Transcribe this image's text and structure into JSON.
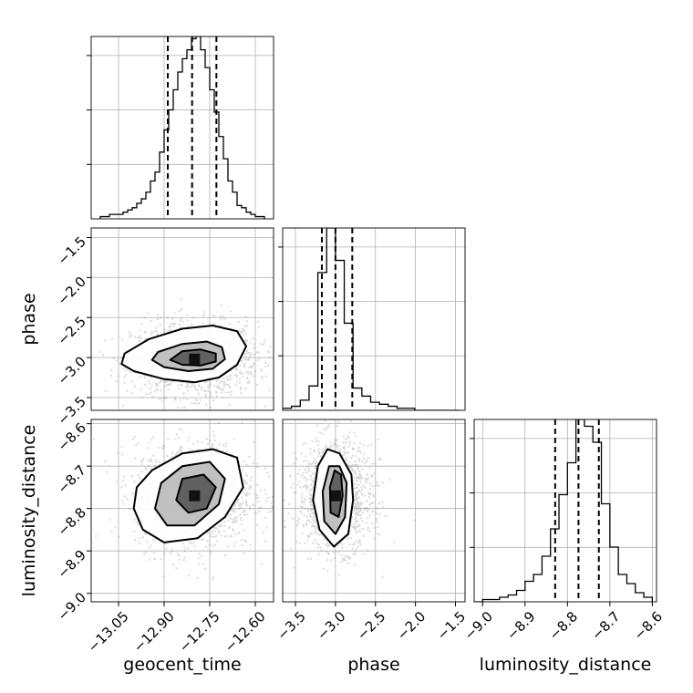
{
  "chart_data": {
    "type": "corner",
    "grid": true,
    "parameters": [
      {
        "name": "geocent_time",
        "range": [
          -13.14,
          -12.54
        ],
        "ticks": [
          -13.05,
          -12.9,
          -12.75,
          -12.6
        ],
        "tick_labels": [
          "−13.05",
          "−12.90",
          "−12.75",
          "−12.60"
        ],
        "quantiles": [
          -12.888,
          -12.808,
          -12.728
        ],
        "hist_bins": [
          -13.11,
          -13.095,
          -13.08,
          -13.065,
          -13.05,
          -13.035,
          -13.02,
          -13.005,
          -12.99,
          -12.975,
          -12.96,
          -12.945,
          -12.93,
          -12.915,
          -12.9,
          -12.885,
          -12.87,
          -12.855,
          -12.84,
          -12.825,
          -12.81,
          -12.795,
          -12.78,
          -12.765,
          -12.75,
          -12.735,
          -12.72,
          -12.705,
          -12.69,
          -12.675,
          -12.66,
          -12.645,
          -12.63,
          -12.615,
          -12.6,
          -12.585,
          -12.57
        ],
        "hist_counts": [
          1,
          1,
          2,
          2,
          2,
          3,
          4,
          5,
          7,
          9,
          12,
          17,
          21,
          30,
          40,
          49,
          58,
          66,
          72,
          76,
          81,
          82,
          76,
          68,
          58,
          48,
          37,
          27,
          17,
          12,
          6,
          5,
          3,
          2,
          1,
          1
        ]
      },
      {
        "name": "phase",
        "range": [
          -3.66,
          -1.38
        ],
        "ticks": [
          -3.5,
          -3.0,
          -2.5,
          -2.0,
          -1.5
        ],
        "tick_labels": [
          "−3.5",
          "−3.0",
          "−2.5",
          "−2.0",
          "−1.5"
        ],
        "y_ticks": [
          -3.5,
          -3.0,
          -2.5,
          -2.0,
          -1.5
        ],
        "quantiles": [
          -3.17,
          -3.0,
          -2.79
        ],
        "hist_bins": [
          -3.66,
          -3.55,
          -3.44,
          -3.33,
          -3.22,
          -3.11,
          -3.0,
          -2.89,
          -2.78,
          -2.67,
          -2.56,
          -2.45,
          -2.34,
          -2.23,
          -2.12,
          -2.01,
          -1.9,
          -1.79,
          -1.68,
          -1.57,
          -1.46
        ],
        "hist_counts": [
          1,
          2,
          5,
          12,
          68,
          90,
          74,
          43,
          11,
          7,
          4,
          3,
          2,
          1,
          1,
          0,
          0,
          0,
          0,
          0
        ]
      },
      {
        "name": "luminosity_distance",
        "range": [
          -9.02,
          -8.59
        ],
        "ticks": [
          -9.0,
          -8.9,
          -8.8,
          -8.7,
          -8.6
        ],
        "tick_labels": [
          "−9.0",
          "−8.9",
          "−8.8",
          "−8.7",
          "−8.6"
        ],
        "quantiles": [
          -8.829,
          -8.774,
          -8.726
        ],
        "hist_bins": [
          -9.02,
          -9.0,
          -8.98,
          -8.96,
          -8.94,
          -8.92,
          -8.9,
          -8.88,
          -8.86,
          -8.84,
          -8.82,
          -8.8,
          -8.78,
          -8.76,
          -8.74,
          -8.72,
          -8.7,
          -8.68,
          -8.66,
          -8.64,
          -8.62,
          -8.6
        ],
        "hist_counts": [
          0,
          1,
          1,
          2,
          3,
          5,
          9,
          12,
          20,
          32,
          47,
          61,
          80,
          77,
          70,
          43,
          24,
          12,
          8,
          4,
          2
        ]
      }
    ],
    "pairs": [
      {
        "x": "geocent_time",
        "y": "phase",
        "center": [
          -12.8,
          -3.02
        ],
        "spread": [
          0.09,
          0.2
        ],
        "contours": [
          [
            [
              -13.04,
              -3.08
            ],
            [
              -13.0,
              -3.17
            ],
            [
              -12.9,
              -3.27
            ],
            [
              -12.8,
              -3.31
            ],
            [
              -12.72,
              -3.25
            ],
            [
              -12.66,
              -3.09
            ],
            [
              -12.63,
              -2.86
            ],
            [
              -12.66,
              -2.67
            ],
            [
              -12.74,
              -2.6
            ],
            [
              -12.84,
              -2.64
            ],
            [
              -12.95,
              -2.77
            ],
            [
              -13.03,
              -2.95
            ]
          ],
          [
            [
              -12.94,
              -3.03
            ],
            [
              -12.9,
              -3.12
            ],
            [
              -12.82,
              -3.17
            ],
            [
              -12.74,
              -3.14
            ],
            [
              -12.7,
              -3.02
            ],
            [
              -12.71,
              -2.87
            ],
            [
              -12.76,
              -2.8
            ],
            [
              -12.84,
              -2.83
            ],
            [
              -12.92,
              -2.93
            ]
          ],
          [
            [
              -12.88,
              -3.03
            ],
            [
              -12.84,
              -3.09
            ],
            [
              -12.78,
              -3.1
            ],
            [
              -12.73,
              -3.05
            ],
            [
              -12.73,
              -2.95
            ],
            [
              -12.78,
              -2.9
            ],
            [
              -12.84,
              -2.92
            ]
          ]
        ]
      },
      {
        "x": "geocent_time",
        "y": "luminosity_distance",
        "center": [
          -12.8,
          -8.77
        ],
        "spread": [
          0.085,
          0.055
        ],
        "contours": [
          [
            [
              -13.0,
              -8.8
            ],
            [
              -12.97,
              -8.85
            ],
            [
              -12.9,
              -8.88
            ],
            [
              -12.79,
              -8.87
            ],
            [
              -12.7,
              -8.82
            ],
            [
              -12.64,
              -8.75
            ],
            [
              -12.66,
              -8.68
            ],
            [
              -12.74,
              -8.66
            ],
            [
              -12.84,
              -8.67
            ],
            [
              -12.94,
              -8.71
            ],
            [
              -12.99,
              -8.75
            ]
          ],
          [
            [
              -12.93,
              -8.8
            ],
            [
              -12.89,
              -8.84
            ],
            [
              -12.8,
              -8.84
            ],
            [
              -12.72,
              -8.79
            ],
            [
              -12.7,
              -8.73
            ],
            [
              -12.75,
              -8.69
            ],
            [
              -12.84,
              -8.7
            ],
            [
              -12.91,
              -8.74
            ]
          ],
          [
            [
              -12.86,
              -8.78
            ],
            [
              -12.82,
              -8.81
            ],
            [
              -12.76,
              -8.8
            ],
            [
              -12.73,
              -8.75
            ],
            [
              -12.77,
              -8.72
            ],
            [
              -12.84,
              -8.73
            ]
          ]
        ]
      },
      {
        "x": "phase",
        "y": "luminosity_distance",
        "center": [
          -3.0,
          -8.77
        ],
        "spread": [
          0.2,
          0.055
        ],
        "contours": [
          [
            [
              -3.2,
              -8.85
            ],
            [
              -3.02,
              -8.89
            ],
            [
              -2.84,
              -8.86
            ],
            [
              -2.78,
              -8.78
            ],
            [
              -2.8,
              -8.72
            ],
            [
              -2.95,
              -8.67
            ],
            [
              -3.1,
              -8.66
            ],
            [
              -3.22,
              -8.7
            ],
            [
              -3.28,
              -8.78
            ]
          ],
          [
            [
              -3.14,
              -8.83
            ],
            [
              -3.0,
              -8.86
            ],
            [
              -2.88,
              -8.82
            ],
            [
              -2.86,
              -8.74
            ],
            [
              -2.95,
              -8.7
            ],
            [
              -3.08,
              -8.7
            ],
            [
              -3.16,
              -8.76
            ]
          ],
          [
            [
              -3.06,
              -8.81
            ],
            [
              -2.96,
              -8.82
            ],
            [
              -2.91,
              -8.77
            ],
            [
              -2.93,
              -8.72
            ],
            [
              -3.01,
              -8.71
            ],
            [
              -3.07,
              -8.75
            ]
          ]
        ]
      }
    ]
  }
}
